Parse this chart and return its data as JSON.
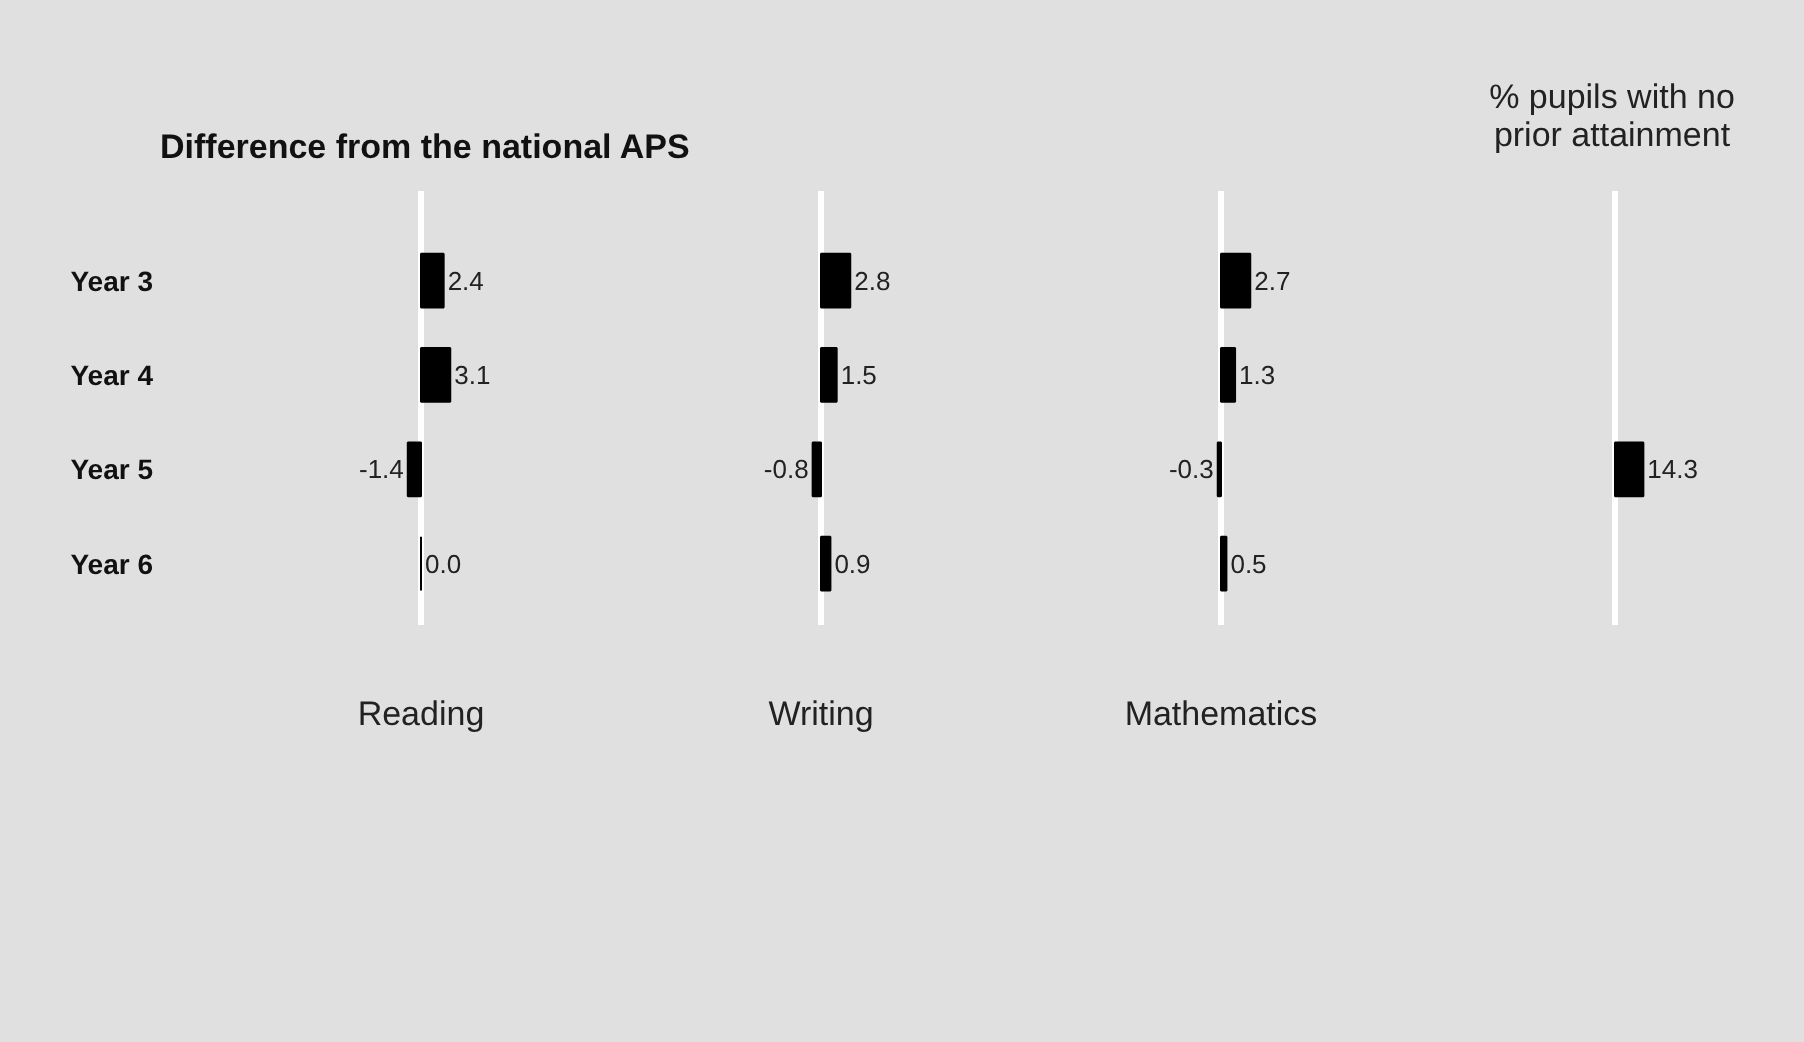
{
  "chart_data": [
    {
      "type": "bar",
      "orientation": "horizontal",
      "title": "Difference from the national APS",
      "xlabel": "Reading",
      "categories": [
        "Year 3",
        "Year 4",
        "Year 5",
        "Year 6"
      ],
      "values": [
        2.4,
        3.1,
        -1.4,
        0.0
      ],
      "value_labels": [
        "2.4",
        "3.1",
        "-1.4",
        "0.0"
      ],
      "color": "#000000",
      "tick_labels": "y"
    },
    {
      "type": "bar",
      "orientation": "horizontal",
      "xlabel": "Writing",
      "values": [
        2.8,
        1.5,
        -0.8,
        0.9
      ],
      "color": "#000000",
      "data_labels": true,
      "tick_labels": false
    },
    {
      "type": "bar",
      "orientation": "horizontal",
      "xlabel": "Mathematics",
      "values": [
        2.7,
        1.3,
        -0.3,
        0.5
      ],
      "color": "#000000",
      "data_labels": true,
      "tick_labels": false
    },
    {
      "type": "bar",
      "orientation": "horizontal",
      "title": "% pupils with no prior attainment",
      "values": [
        null,
        null,
        14.3,
        null
      ],
      "color": "#000000",
      "data_labels": true,
      "tick_labels": false
    }
  ]
}
